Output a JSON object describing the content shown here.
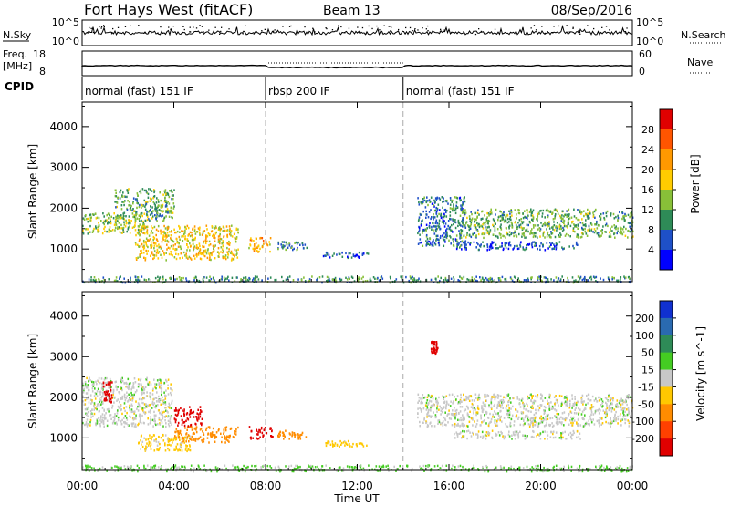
{
  "header": {
    "title": "Fort Hays West (fitACF)",
    "beam": "Beam 13",
    "date": "08/Sep/2016"
  },
  "nsky_panel": {
    "left_label": "N.Sky",
    "left_ticks": [
      "10^5",
      "10^0"
    ],
    "right_label": "N.Search",
    "right_ticks": [
      "10^5",
      "10^0"
    ]
  },
  "freq_panel": {
    "left_label": "Freq.",
    "left_unit": "[MHz]",
    "left_ticks": [
      "18",
      "8"
    ],
    "right_label": "Nave",
    "right_ticks": [
      "60",
      "0"
    ]
  },
  "cpid": {
    "label": "CPID",
    "segments": [
      {
        "name": "normal (fast) 151 IF",
        "start_hour": 0,
        "end_hour": 8
      },
      {
        "name": "rbsp 200 IF",
        "start_hour": 8,
        "end_hour": 14
      },
      {
        "name": "normal (fast) 151 IF",
        "start_hour": 14,
        "end_hour": 24
      }
    ]
  },
  "power_colorbar": {
    "label": "Power [dB]",
    "ticks": [
      "28",
      "24",
      "20",
      "16",
      "12",
      "8",
      "4"
    ],
    "colors": [
      "#e00000",
      "#ff5500",
      "#ff9900",
      "#ffcc00",
      "#88c038",
      "#2e8b57",
      "#1e50c8",
      "#0000ff"
    ]
  },
  "velocity_colorbar": {
    "label": "Velocity [m s^-1]",
    "ticks": [
      "200",
      "100",
      "50",
      "15",
      "-15",
      "-50",
      "-100",
      "-200"
    ],
    "colors": [
      "#1030d0",
      "#2a6ab0",
      "#2e8b57",
      "#44cc22",
      "#c8c8c8",
      "#ffc800",
      "#ff8c00",
      "#ff4000",
      "#e00000"
    ]
  },
  "chart_data": {
    "type": "heatmap",
    "xlabel": "Time UT",
    "x_ticks": [
      "00:00",
      "04:00",
      "08:00",
      "12:00",
      "16:00",
      "20:00",
      "00:00"
    ],
    "xlim_hours": [
      0,
      24
    ],
    "ylabel": "Slant Range [km]",
    "y_ticks": [
      1000,
      2000,
      3000,
      4000
    ],
    "ylim_km": [
      200,
      4600
    ],
    "reference_lines_hours": [
      8,
      14
    ],
    "power_regions": [
      {
        "t0": 0.0,
        "t1": 2.8,
        "r0": 1400,
        "r1": 1900,
        "power_db": 16
      },
      {
        "t0": 1.4,
        "t1": 4.0,
        "r0": 1700,
        "r1": 2500,
        "power_db": 14
      },
      {
        "t0": 2.3,
        "t1": 6.8,
        "r0": 750,
        "r1": 1600,
        "power_db": 20
      },
      {
        "t0": 7.2,
        "t1": 8.2,
        "r0": 950,
        "r1": 1300,
        "power_db": 22
      },
      {
        "t0": 8.5,
        "t1": 9.8,
        "r0": 1000,
        "r1": 1200,
        "power_db": 10
      },
      {
        "t0": 10.5,
        "t1": 12.5,
        "r0": 800,
        "r1": 950,
        "power_db": 8
      },
      {
        "t0": 14.6,
        "t1": 16.7,
        "r0": 1100,
        "r1": 2300,
        "power_db": 10
      },
      {
        "t0": 16.5,
        "t1": 24.0,
        "r0": 1300,
        "r1": 2000,
        "power_db": 14
      },
      {
        "t0": 16.2,
        "t1": 21.7,
        "r0": 1000,
        "r1": 1200,
        "power_db": 8
      },
      {
        "t0": 0.0,
        "t1": 24.0,
        "r0": 200,
        "r1": 350,
        "power_db": 12
      }
    ],
    "velocity_regions": [
      {
        "t0": 0.0,
        "t1": 3.9,
        "r0": 1300,
        "r1": 2500,
        "velocity_ms": 0
      },
      {
        "t0": 0.9,
        "t1": 1.3,
        "r0": 1900,
        "r1": 2400,
        "velocity_ms": -250
      },
      {
        "t0": 2.4,
        "t1": 4.7,
        "r0": 700,
        "r1": 1100,
        "velocity_ms": -30
      },
      {
        "t0": 4.0,
        "t1": 6.8,
        "r0": 900,
        "r1": 1300,
        "velocity_ms": -80
      },
      {
        "t0": 4.0,
        "t1": 5.2,
        "r0": 1300,
        "r1": 1800,
        "velocity_ms": -250
      },
      {
        "t0": 7.2,
        "t1": 8.3,
        "r0": 1000,
        "r1": 1300,
        "velocity_ms": -250
      },
      {
        "t0": 8.5,
        "t1": 9.8,
        "r0": 1000,
        "r1": 1200,
        "velocity_ms": -80
      },
      {
        "t0": 10.6,
        "t1": 12.4,
        "r0": 800,
        "r1": 950,
        "velocity_ms": -30
      },
      {
        "t0": 15.2,
        "t1": 15.5,
        "r0": 3100,
        "r1": 3400,
        "velocity_ms": -250
      },
      {
        "t0": 14.6,
        "t1": 24.0,
        "r0": 1300,
        "r1": 2100,
        "velocity_ms": 0
      },
      {
        "t0": 16.2,
        "t1": 21.7,
        "r0": 1000,
        "r1": 1200,
        "velocity_ms": 0
      },
      {
        "t0": 0.0,
        "t1": 24.0,
        "r0": 200,
        "r1": 350,
        "velocity_ms": 20
      }
    ]
  }
}
